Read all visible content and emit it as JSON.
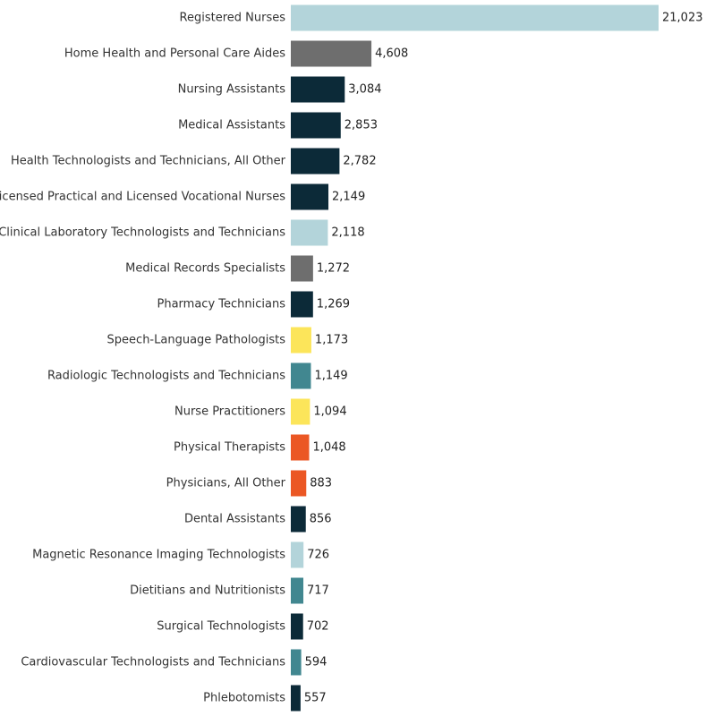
{
  "chart_data": {
    "type": "bar",
    "orientation": "horizontal",
    "title": "",
    "xlabel": "",
    "ylabel": "",
    "xlim": [
      0,
      21023
    ],
    "grid": false,
    "legend": "none",
    "categories": [
      "Registered Nurses",
      "Home Health and Personal Care Aides",
      "Nursing Assistants",
      "Medical Assistants",
      "Health Technologists and Technicians, All Other",
      "Licensed Practical and Licensed Vocational Nurses",
      "Clinical Laboratory Technologists and Technicians",
      "Medical Records Specialists",
      "Pharmacy Technicians",
      "Speech-Language Pathologists",
      "Radiologic Technologists and Technicians",
      "Nurse Practitioners",
      "Physical Therapists",
      "Physicians, All Other",
      "Dental Assistants",
      "Magnetic Resonance Imaging Technologists",
      "Dietitians and Nutritionists",
      "Surgical Technologists",
      "Cardiovascular Technologists and Technicians",
      "Phlebotomists"
    ],
    "values": [
      21023,
      4608,
      3084,
      2853,
      2782,
      2149,
      2118,
      1272,
      1269,
      1173,
      1149,
      1094,
      1048,
      883,
      856,
      726,
      717,
      702,
      594,
      557
    ],
    "value_labels": [
      "21,023",
      "4,608",
      "3,084",
      "2,853",
      "2,782",
      "2,149",
      "2,118",
      "1,272",
      "1,269",
      "1,173",
      "1,149",
      "1,094",
      "1,048",
      "883",
      "856",
      "726",
      "717",
      "702",
      "594",
      "557"
    ],
    "colors": [
      "#b3d4da",
      "#6e6e6e",
      "#0c2a38",
      "#0c2a38",
      "#0c2a38",
      "#0c2a38",
      "#b3d4da",
      "#6e6e6e",
      "#0c2a38",
      "#fce55a",
      "#418790",
      "#fce55a",
      "#eb5724",
      "#eb5724",
      "#0c2a38",
      "#b3d4da",
      "#418790",
      "#0c2a38",
      "#418790",
      "#0c2a38"
    ]
  }
}
